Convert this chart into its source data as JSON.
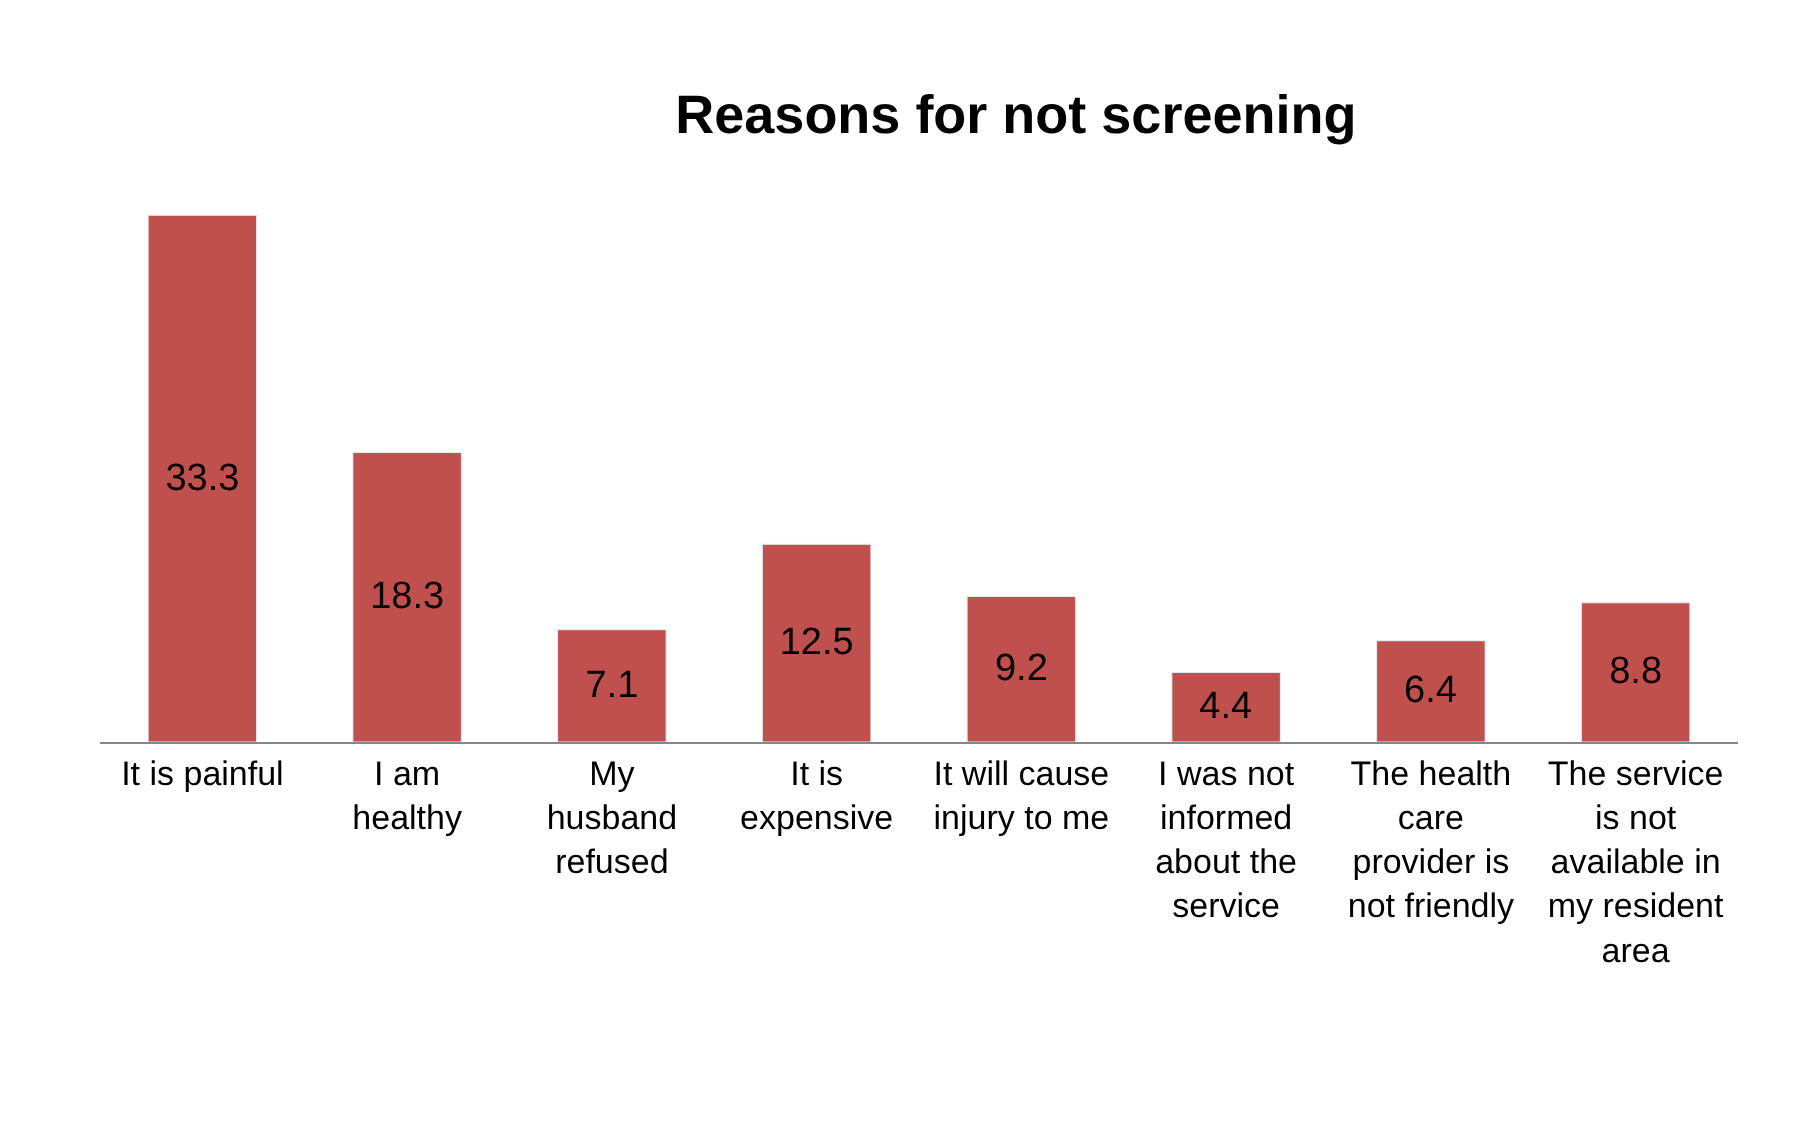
{
  "chart_data": {
    "type": "bar",
    "title": "Reasons for not screening",
    "categories": [
      "It is painful",
      "I am\nhealthy",
      "My\nhusband\nrefused",
      "It is\nexpensive",
      "It will cause\ninjury to me",
      "I was not\ninformed\nabout the\nservice",
      "The health\ncare\nprovider is\nnot friendly",
      "The service\nis not\navailable in\nmy resident\narea"
    ],
    "values": [
      33.3,
      18.3,
      7.1,
      12.5,
      9.2,
      4.4,
      6.4,
      8.8
    ],
    "color": "#c0504d",
    "data_labels": true,
    "legend": false
  }
}
